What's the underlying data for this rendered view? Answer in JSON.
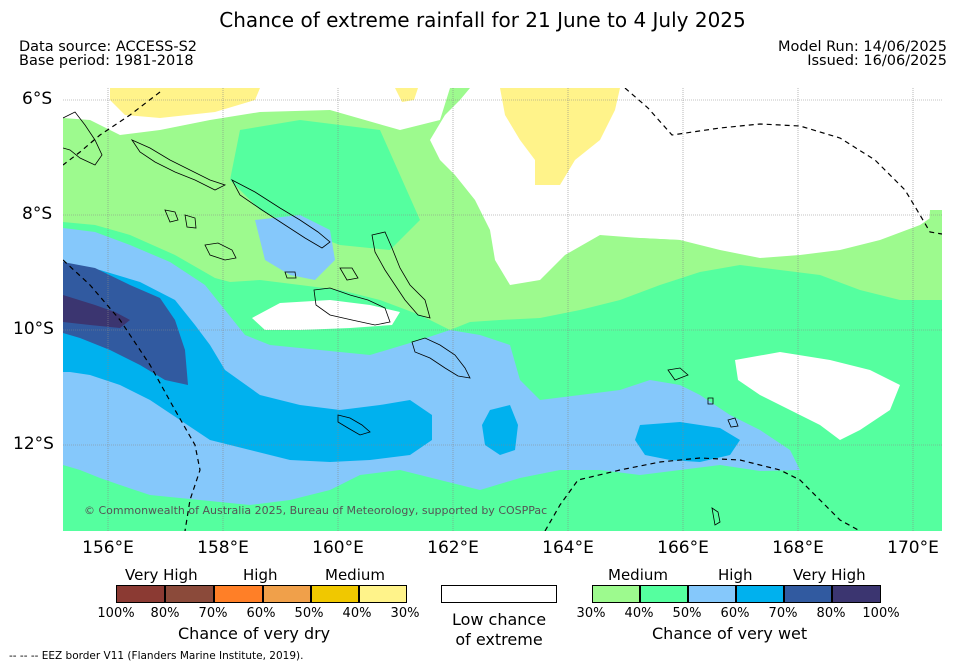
{
  "title": "Chance of extreme rainfall for 21 June to 4 July 2025",
  "meta": {
    "data_source": "Data source: ACCESS-S2",
    "base_period": "Base period: 1981-2018",
    "model_run": "Model Run: 14/06/2025",
    "issued": "Issued: 16/06/2025"
  },
  "axes": {
    "lat_labels": [
      "6°S",
      "8°S",
      "10°S",
      "12°S"
    ],
    "lon_labels": [
      "156°E",
      "158°E",
      "160°E",
      "162°E",
      "164°E",
      "166°E",
      "168°E",
      "170°E"
    ]
  },
  "copyright": "© Commonwealth of Australia 2025, Bureau of Meteorology, supported by COSPPac",
  "colors": {
    "vdry100": "#8b3a33",
    "vdry80": "#8b4a3a",
    "vdry70": "#ff7f27",
    "vdry60": "#f0a04a",
    "vdry50": "#f0c800",
    "vdry40": "#fff38a",
    "none": "#ffffff",
    "wet30": "#9dfa8e",
    "wet40": "#55ff9f",
    "wet50": "#85c8fb",
    "wet60": "#00b1ee",
    "wet70": "#315aa0",
    "wet80": "#3b3570"
  },
  "legend_dry": {
    "categories": [
      "Very High",
      "High",
      "Medium"
    ],
    "ticks": [
      "100%",
      "80%",
      "70%",
      "60%",
      "50%",
      "40%",
      "30%"
    ],
    "title": "Chance of very dry"
  },
  "legend_none": {
    "line1": "Low chance",
    "line2": "of extreme"
  },
  "legend_wet": {
    "categories": [
      "Medium",
      "High",
      "Very High"
    ],
    "ticks": [
      "30%",
      "40%",
      "50%",
      "60%",
      "70%",
      "80%",
      "100%"
    ],
    "title": "Chance of very wet"
  },
  "footnote": "--  --  -- EEZ border V11 (Flanders Marine Institute, 2019)."
}
